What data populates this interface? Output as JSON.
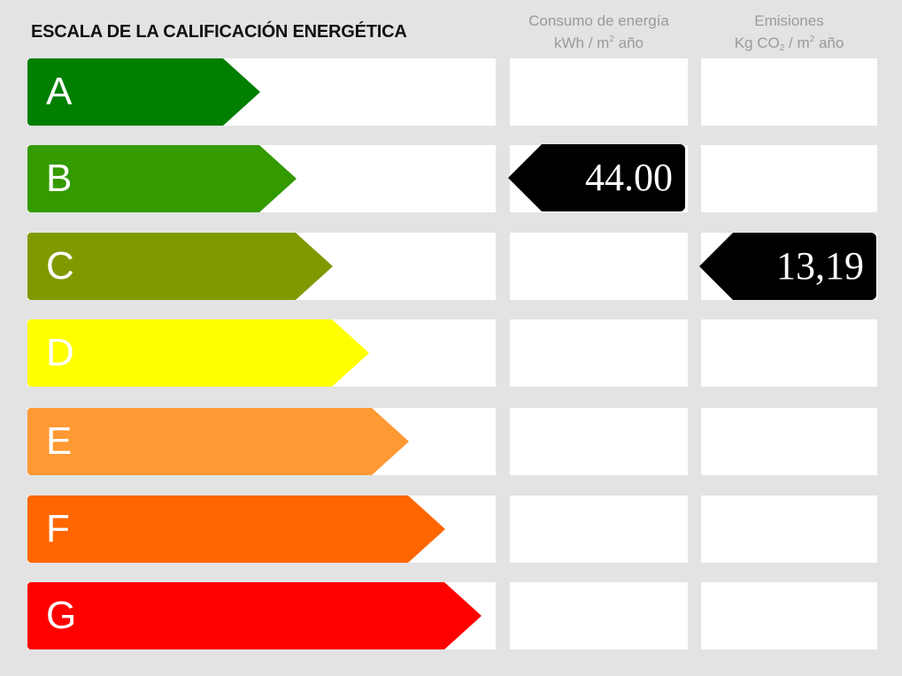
{
  "title": "ESCALA DE LA CALIFICACIÓN ENERGÉTICA",
  "columns": {
    "consumo": {
      "line1": "Consumo de energía",
      "line2_pre": "kWh / m",
      "line2_sup": "2",
      "line2_post": " año"
    },
    "emisiones": {
      "line1": "Emisiones",
      "line2_pre": "Kg CO",
      "line2_sub": "2",
      "line2_mid": " / m",
      "line2_sup": "2",
      "line2_post": " año"
    }
  },
  "ratings": [
    {
      "letter": "A",
      "color": "#007f00"
    },
    {
      "letter": "B",
      "color": "#339a00"
    },
    {
      "letter": "C",
      "color": "#7f9a00"
    },
    {
      "letter": "D",
      "color": "#ffff00"
    },
    {
      "letter": "E",
      "color": "#ff9933"
    },
    {
      "letter": "F",
      "color": "#ff6600"
    },
    {
      "letter": "G",
      "color": "#ff0000"
    }
  ],
  "consumo_value": {
    "rating": "B",
    "value": "44.00"
  },
  "emisiones_value": {
    "rating": "C",
    "value": "13,19"
  }
}
